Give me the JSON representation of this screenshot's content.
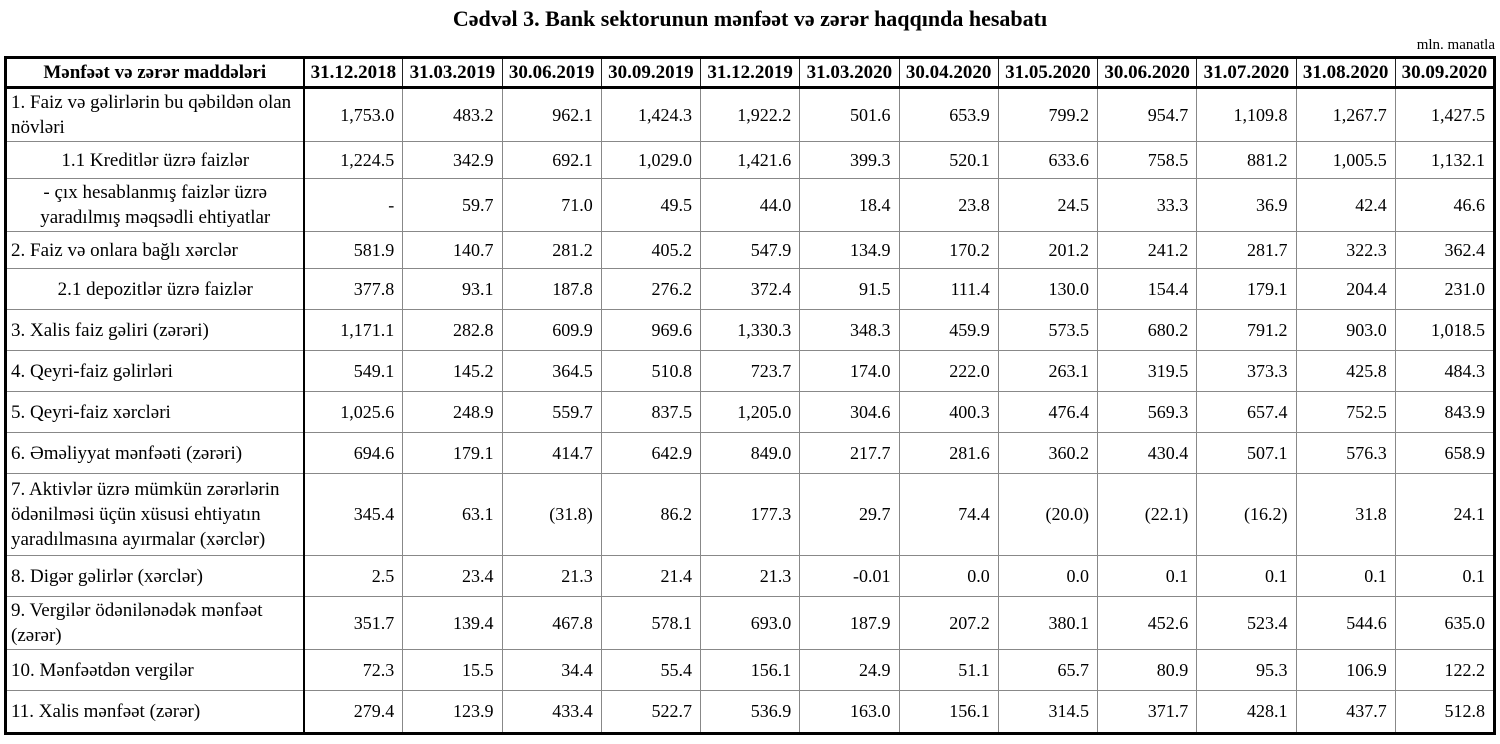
{
  "title": "Cədvəl 3. Bank sektorunun mənfəət və zərər haqqında hesabatı",
  "unit_label": "mln. manatla",
  "table": {
    "header": {
      "label_col": "Mənfəət və zərər maddələri",
      "date_cols": [
        "31.12.2018",
        "31.03.2019",
        "30.06.2019",
        "30.09.2019",
        "31.12.2019",
        "31.03.2020",
        "30.04.2020",
        "31.05.2020",
        "30.06.2020",
        "31.07.2020",
        "31.08.2020",
        "30.09.2020"
      ]
    },
    "rows": [
      {
        "label": "1. Faiz və gəlirlərin bu qəbildən olan növləri",
        "sub": false,
        "values": [
          "1,753.0",
          "483.2",
          "962.1",
          "1,424.3",
          "1,922.2",
          "501.6",
          "653.9",
          "799.2",
          "954.7",
          "1,109.8",
          "1,267.7",
          "1,427.5"
        ]
      },
      {
        "label": "1.1 Kreditlər üzrə faizlər",
        "sub": true,
        "values": [
          "1,224.5",
          "342.9",
          "692.1",
          "1,029.0",
          "1,421.6",
          "399.3",
          "520.1",
          "633.6",
          "758.5",
          "881.2",
          "1,005.5",
          "1,132.1"
        ]
      },
      {
        "label": "-  çıx hesablanmış faizlər üzrə yaradılmış məqsədli ehtiyatlar",
        "sub": true,
        "values": [
          "-",
          "59.7",
          "71.0",
          "49.5",
          "44.0",
          "18.4",
          "23.8",
          "24.5",
          "33.3",
          "36.9",
          "42.4",
          "46.6"
        ]
      },
      {
        "label": "2. Faiz və onlara bağlı xərclər",
        "sub": false,
        "values": [
          "581.9",
          "140.7",
          "281.2",
          "405.2",
          "547.9",
          "134.9",
          "170.2",
          "201.2",
          "241.2",
          "281.7",
          "322.3",
          "362.4"
        ]
      },
      {
        "label": "2.1 depozitlər üzrə faizlər",
        "sub": true,
        "values": [
          "377.8",
          "93.1",
          "187.8",
          "276.2",
          "372.4",
          "91.5",
          "111.4",
          "130.0",
          "154.4",
          "179.1",
          "204.4",
          "231.0"
        ]
      },
      {
        "label": "3. Xalis faiz gəliri (zərəri)",
        "sub": false,
        "values": [
          "1,171.1",
          "282.8",
          "609.9",
          "969.6",
          "1,330.3",
          "348.3",
          "459.9",
          "573.5",
          "680.2",
          "791.2",
          "903.0",
          "1,018.5"
        ]
      },
      {
        "label": "4. Qeyri-faiz gəlirləri",
        "sub": false,
        "values": [
          "549.1",
          "145.2",
          "364.5",
          "510.8",
          "723.7",
          "174.0",
          "222.0",
          "263.1",
          "319.5",
          "373.3",
          "425.8",
          "484.3"
        ]
      },
      {
        "label": "5. Qeyri-faiz xərcləri",
        "sub": false,
        "values": [
          "1,025.6",
          "248.9",
          "559.7",
          "837.5",
          "1,205.0",
          "304.6",
          "400.3",
          "476.4",
          "569.3",
          "657.4",
          "752.5",
          "843.9"
        ]
      },
      {
        "label": "6. Əməliyyat mənfəəti (zərəri)",
        "sub": false,
        "values": [
          "694.6",
          "179.1",
          "414.7",
          "642.9",
          "849.0",
          "217.7",
          "281.6",
          "360.2",
          "430.4",
          "507.1",
          "576.3",
          "658.9"
        ]
      },
      {
        "label": "7. Aktivlər üzrə mümkün zərərlərin ödənilməsi üçün xüsusi ehtiyatın yaradılmasına ayırmalar (xərclər)",
        "sub": false,
        "values": [
          "345.4",
          "63.1",
          "(31.8)",
          "86.2",
          "177.3",
          "29.7",
          "74.4",
          "(20.0)",
          "(22.1)",
          "(16.2)",
          "31.8",
          "24.1"
        ]
      },
      {
        "label": "8. Digər gəlirlər (xərclər)",
        "sub": false,
        "values": [
          "2.5",
          "23.4",
          "21.3",
          "21.4",
          "21.3",
          "-0.01",
          "0.0",
          "0.0",
          "0.1",
          "0.1",
          "0.1",
          "0.1"
        ]
      },
      {
        "label": "9. Vergilər ödənilənədək mənfəət (zərər)",
        "sub": false,
        "values": [
          "351.7",
          "139.4",
          "467.8",
          "578.1",
          "693.0",
          "187.9",
          "207.2",
          "380.1",
          "452.6",
          "523.4",
          "544.6",
          "635.0"
        ]
      },
      {
        "label": "10. Mənfəətdən vergilər",
        "sub": false,
        "values": [
          "72.3",
          "15.5",
          "34.4",
          "55.4",
          "156.1",
          "24.9",
          "51.1",
          "65.7",
          "80.9",
          "95.3",
          "106.9",
          "122.2"
        ]
      },
      {
        "label": "11. Xalis mənfəət (zərər)",
        "sub": false,
        "values": [
          "279.4",
          "123.9",
          "433.4",
          "522.7",
          "536.9",
          "163.0",
          "156.1",
          "314.5",
          "371.7",
          "428.1",
          "437.7",
          "512.8"
        ]
      }
    ]
  }
}
